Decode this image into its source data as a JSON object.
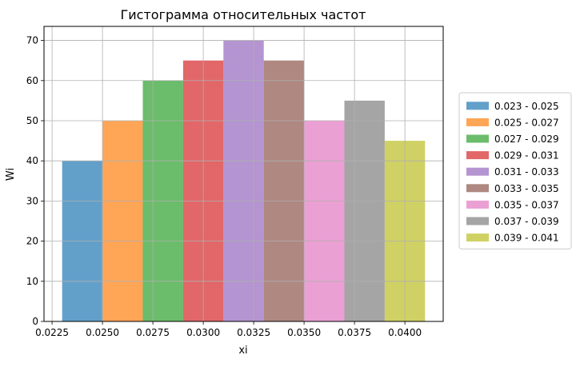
{
  "chart_data": {
    "type": "bar",
    "title": "Гистограмма относительных частот",
    "xlabel": "xi",
    "ylabel": "Wi",
    "xlim": [
      0.0221,
      0.0419
    ],
    "ylim": [
      0,
      73.5
    ],
    "xticks": [
      0.0225,
      0.025,
      0.0275,
      0.03,
      0.0325,
      0.035,
      0.0375,
      0.04
    ],
    "xtick_labels": [
      "0.0225",
      "0.0250",
      "0.0275",
      "0.0300",
      "0.0325",
      "0.0350",
      "0.0375",
      "0.0400"
    ],
    "yticks": [
      0,
      10,
      20,
      30,
      40,
      50,
      60,
      70
    ],
    "ytick_labels": [
      "0",
      "10",
      "20",
      "30",
      "40",
      "50",
      "60",
      "70"
    ],
    "grid": true,
    "legend_position": "right",
    "bars": [
      {
        "label": "0.023 - 0.025",
        "x0": 0.023,
        "x1": 0.025,
        "value": 40,
        "color": "#1f77b4"
      },
      {
        "label": "0.025 - 0.027",
        "x0": 0.025,
        "x1": 0.027,
        "value": 50,
        "color": "#ff7f0e"
      },
      {
        "label": "0.027 - 0.029",
        "x0": 0.027,
        "x1": 0.029,
        "value": 60,
        "color": "#2ca02c"
      },
      {
        "label": "0.029 - 0.031",
        "x0": 0.029,
        "x1": 0.031,
        "value": 65,
        "color": "#d62728"
      },
      {
        "label": "0.031 - 0.033",
        "x0": 0.031,
        "x1": 0.033,
        "value": 70,
        "color": "#9467bd"
      },
      {
        "label": "0.033 - 0.035",
        "x0": 0.033,
        "x1": 0.035,
        "value": 65,
        "color": "#8c564b"
      },
      {
        "label": "0.035 - 0.037",
        "x0": 0.035,
        "x1": 0.037,
        "value": 50,
        "color": "#e377c2"
      },
      {
        "label": "0.037 - 0.039",
        "x0": 0.037,
        "x1": 0.039,
        "value": 55,
        "color": "#7f7f7f"
      },
      {
        "label": "0.039 - 0.041",
        "x0": 0.039,
        "x1": 0.041,
        "value": 45,
        "color": "#bcbd22"
      }
    ]
  }
}
